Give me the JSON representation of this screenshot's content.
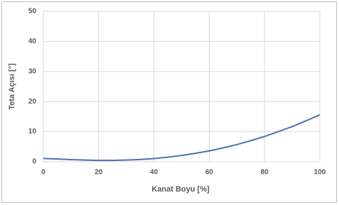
{
  "chart_data": {
    "type": "line",
    "x_label": "Kanat Boyu [%]",
    "y_label": "Teta Açısı [°]",
    "x": [
      0,
      5,
      10,
      15,
      20,
      25,
      30,
      35,
      40,
      45,
      50,
      55,
      60,
      65,
      70,
      75,
      80,
      85,
      90,
      95,
      100
    ],
    "series": [
      {
        "color": "#4a72b0",
        "values": [
          1.1,
          0.9,
          0.7,
          0.55,
          0.45,
          0.45,
          0.55,
          0.75,
          1.05,
          1.5,
          2.1,
          2.8,
          3.6,
          4.6,
          5.7,
          7.0,
          8.4,
          10.0,
          11.7,
          13.6,
          15.6
        ]
      }
    ],
    "xlim": [
      0,
      100
    ],
    "xticks": [
      0,
      20,
      40,
      60,
      80,
      100
    ],
    "ylim": [
      0,
      50
    ],
    "yticks": [
      0,
      10,
      20,
      30,
      40,
      50
    ],
    "grid": true
  }
}
